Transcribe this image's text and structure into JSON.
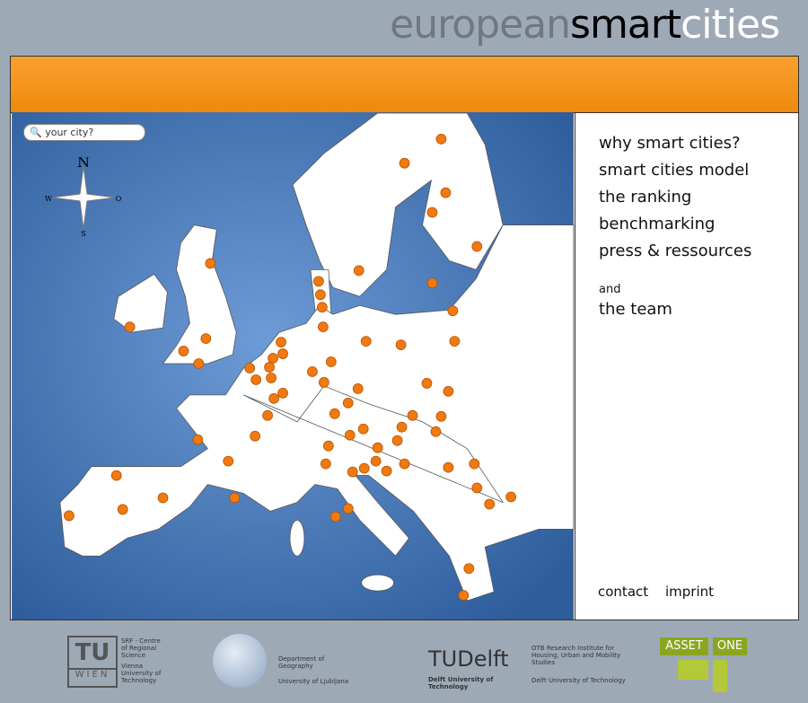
{
  "header": {
    "title_parts": [
      "european",
      "smart",
      "cities"
    ]
  },
  "search": {
    "placeholder": "your city?"
  },
  "compass": {
    "north": "N",
    "west": "W",
    "east": "O",
    "south": "S"
  },
  "nav": {
    "items": [
      "why smart cities?",
      "smart cities model",
      "the ranking",
      "benchmarking",
      "press & ressources"
    ],
    "conjunction": "and",
    "team": "the team"
  },
  "footer_links": [
    "contact",
    "imprint"
  ],
  "partners": [
    {
      "mark": "TU",
      "sub": "WIEN",
      "lines": [
        "SRF - Centre of Regional Science",
        "Vienna University of Technology"
      ]
    },
    {
      "lines": [
        "Department of Geography",
        "University of Ljubljana"
      ]
    },
    {
      "mark": "TUDelft",
      "sub": "Delft University of Technology",
      "lines": [
        "OTB Research Institute for Housing, Urban and Mobility Studies",
        "Delft University of Technology"
      ]
    },
    {
      "lines": [
        "ASSET",
        "ONE"
      ]
    }
  ]
}
